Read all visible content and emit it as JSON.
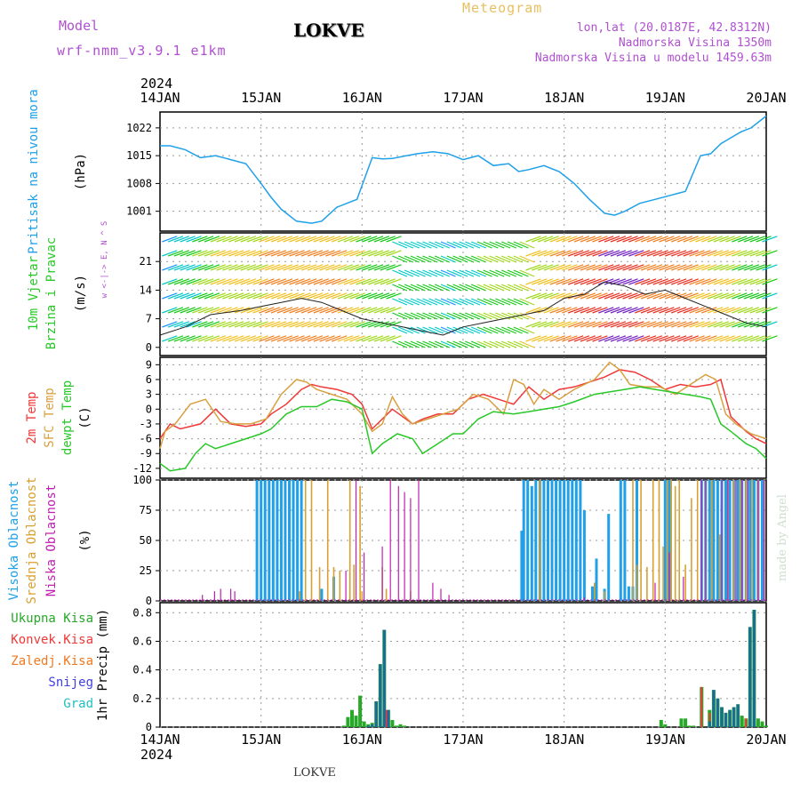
{
  "header": {
    "model_label": "Model",
    "model_name": "wrf-nmm_v3.9.1  e1km",
    "station": "LOKVE",
    "meteogram_title": "Meteogram",
    "coords": "lon,lat (20.0187E, 42.8312N)",
    "altitude": "Nadmorska Visina 1350m",
    "model_altitude": "Nadmorska Visina u modelu 1459.63m"
  },
  "footer": {
    "station": "LOKVE",
    "watermark": "made by Angel"
  },
  "colors": {
    "pressure": "#1fa0e8",
    "temp2m": "#f03838",
    "sfctemp": "#d8a040",
    "dewpoint": "#28c828",
    "high_cloud": "#1fa0e8",
    "mid_cloud": "#d8a030",
    "low_cloud": "#c020b0",
    "precip_total": "#28a828",
    "convective": "#f03838",
    "freezing": "#f07820",
    "snow": "#4040e0",
    "hail": "#20c0c0"
  },
  "chart_data": [
    {
      "type": "line",
      "panel": "pressure",
      "x_dates": [
        "14JAN",
        "15JAN",
        "16JAN",
        "17JAN",
        "18JAN",
        "19JAN",
        "20JAN"
      ],
      "x_year": "2024",
      "ylabel": "Pritisak na nivou mora",
      "unit": "(hPa)",
      "yticks": [
        1001,
        1008,
        1015,
        1022
      ],
      "ylim": [
        996,
        1026
      ],
      "series": [
        {
          "x": [
            0,
            0.1,
            0.25,
            0.4,
            0.55,
            0.7,
            0.85,
            1.0,
            1.1,
            1.2,
            1.35,
            1.5,
            1.6,
            1.75,
            1.85,
            1.95,
            2.1,
            2.2,
            2.3,
            2.4,
            2.55,
            2.7,
            2.85,
            3.0,
            3.15,
            3.3,
            3.45,
            3.55,
            3.65,
            3.8,
            3.95,
            4.1,
            4.25,
            4.4,
            4.5,
            4.6,
            4.75,
            4.9,
            5.05,
            5.2,
            5.35,
            5.45,
            5.55,
            5.65,
            5.75,
            5.85,
            6.0
          ],
          "y": [
            1017.5,
            1017.5,
            1016.5,
            1014.5,
            1015,
            1014,
            1013,
            1008,
            1004.5,
            1001.5,
            998.5,
            998,
            998.5,
            1002,
            1003,
            1004,
            1014.5,
            1014.2,
            1014.3,
            1014.8,
            1015.5,
            1016,
            1015.5,
            1014,
            1015,
            1012.5,
            1013,
            1011,
            1011.5,
            1012.5,
            1011,
            1008,
            1004,
            1000.5,
            1000,
            1001,
            1003,
            1004,
            1005,
            1006,
            1015,
            1015.5,
            1018,
            1019.5,
            1021,
            1022,
            1025
          ]
        }
      ]
    },
    {
      "type": "wind-barbs",
      "panel": "wind",
      "ylabel": "10m Vjetar Brzina i Pravac",
      "unit": "(m/s)",
      "yticks": [
        0,
        7,
        14,
        21
      ],
      "ylim": [
        -2,
        28
      ],
      "direction_legend": "w <-|-> E, N ^ S",
      "mean_speed": {
        "x": [
          0,
          0.25,
          0.5,
          0.8,
          1.0,
          1.2,
          1.4,
          1.6,
          1.8,
          2.0,
          2.2,
          2.4,
          2.6,
          2.8,
          3.0,
          3.2,
          3.4,
          3.6,
          3.8,
          4.0,
          4.2,
          4.4,
          4.6,
          4.8,
          5.0,
          5.2,
          5.4,
          5.6,
          5.8,
          6.0
        ],
        "y": [
          3,
          5,
          8,
          9,
          10,
          11,
          12,
          11,
          9,
          7,
          6,
          5,
          4,
          3,
          5,
          6,
          7,
          8,
          9,
          12,
          13,
          16,
          15,
          13,
          14,
          12,
          10,
          8,
          6,
          5
        ]
      }
    },
    {
      "type": "line",
      "panel": "temperature",
      "ylabel": [
        "2m Temp",
        "SFC Temp",
        "dewpt Temp"
      ],
      "unit": "(C)",
      "yticks": [
        -12,
        -9,
        -6,
        -3,
        0,
        3,
        6,
        9
      ],
      "ylim": [
        -14,
        10.5
      ],
      "series": [
        {
          "name": "2m Temp",
          "x": [
            0,
            0.1,
            0.2,
            0.4,
            0.55,
            0.7,
            0.85,
            1.0,
            1.1,
            1.25,
            1.4,
            1.5,
            1.6,
            1.75,
            1.9,
            2.0,
            2.1,
            2.2,
            2.3,
            2.5,
            2.6,
            2.75,
            2.9,
            3.05,
            3.2,
            3.35,
            3.5,
            3.65,
            3.8,
            3.95,
            4.1,
            4.25,
            4.4,
            4.55,
            4.7,
            4.85,
            5.0,
            5.15,
            5.3,
            5.45,
            5.55,
            5.65,
            5.8,
            5.9,
            6.0
          ],
          "y": [
            -6,
            -3,
            -4,
            -3,
            0,
            -3,
            -3.5,
            -3,
            -1,
            1,
            4,
            5,
            4.5,
            4,
            3,
            1,
            -4,
            -2,
            0,
            -3,
            -2,
            -1,
            -1,
            2,
            3,
            2,
            1,
            4.5,
            2,
            4,
            4.5,
            5.5,
            6.5,
            8,
            7.5,
            6,
            4,
            5,
            4.5,
            5,
            6,
            -1.5,
            -4.5,
            -6,
            -7
          ]
        },
        {
          "name": "SFC Temp",
          "x": [
            0,
            0.05,
            0.15,
            0.3,
            0.45,
            0.6,
            0.75,
            0.9,
            1.05,
            1.2,
            1.35,
            1.45,
            1.55,
            1.7,
            1.85,
            2.0,
            2.1,
            2.2,
            2.3,
            2.4,
            2.5,
            2.65,
            2.8,
            2.95,
            3.1,
            3.25,
            3.4,
            3.5,
            3.6,
            3.7,
            3.8,
            3.95,
            4.1,
            4.3,
            4.45,
            4.55,
            4.65,
            4.8,
            4.95,
            5.1,
            5.25,
            5.4,
            5.5,
            5.6,
            5.7,
            5.85,
            6.0
          ],
          "y": [
            -8,
            -4.5,
            -3,
            1,
            2,
            -2.5,
            -3,
            -3,
            -2,
            3,
            6,
            5.5,
            4,
            3,
            2,
            -1,
            -4.5,
            -3,
            2.5,
            -1,
            -3,
            -2,
            -1,
            0,
            3,
            2,
            -1,
            6,
            5,
            1,
            4,
            2,
            4,
            6,
            9.5,
            8,
            5,
            4.5,
            4.5,
            3,
            5,
            7,
            6,
            -1,
            -3,
            -5,
            -6
          ]
        },
        {
          "name": "dewpt Temp",
          "x": [
            0,
            0.1,
            0.25,
            0.35,
            0.45,
            0.55,
            0.7,
            0.85,
            1.0,
            1.1,
            1.25,
            1.4,
            1.55,
            1.7,
            1.85,
            2.0,
            2.1,
            2.2,
            2.35,
            2.5,
            2.6,
            2.75,
            2.9,
            3.0,
            3.15,
            3.3,
            3.5,
            3.65,
            3.8,
            3.95,
            4.1,
            4.3,
            4.45,
            4.6,
            4.75,
            4.9,
            5.05,
            5.2,
            5.35,
            5.45,
            5.55,
            5.65,
            5.8,
            5.9,
            6.0
          ],
          "y": [
            -11,
            -12.5,
            -12,
            -9,
            -7,
            -8,
            -7,
            -6,
            -5,
            -4,
            -1,
            0.5,
            0.5,
            2,
            1.5,
            0,
            -9,
            -7,
            -5,
            -6,
            -9,
            -7,
            -5,
            -5,
            -2,
            -0.5,
            -1,
            -0.5,
            0,
            0.5,
            1.5,
            3,
            3.5,
            4,
            4.5,
            4,
            3.5,
            3,
            2.5,
            2,
            -3,
            -4.5,
            -7,
            -8,
            -10
          ]
        }
      ]
    },
    {
      "type": "bar",
      "panel": "clouds",
      "ylabel": [
        "Visoka Oblacnost",
        "Srednja Oblacnost",
        "Niska Oblacnost"
      ],
      "unit": "(%)",
      "yticks": [
        0,
        25,
        50,
        75,
        100
      ],
      "ylim": [
        0,
        100
      ],
      "series": [
        {
          "name": "Visoka Oblacnost",
          "x": [
            0.96,
            1.0,
            1.04,
            1.08,
            1.12,
            1.16,
            1.2,
            1.24,
            1.28,
            1.32,
            1.36,
            1.4,
            1.6,
            1.72,
            3.58,
            3.6,
            3.64,
            3.68,
            3.72,
            3.76,
            3.8,
            3.84,
            3.88,
            3.92,
            3.96,
            4.0,
            4.04,
            4.08,
            4.12,
            4.16,
            4.2,
            4.28,
            4.32,
            4.4,
            4.44,
            4.56,
            4.6,
            4.64,
            4.68,
            4.72,
            5.0,
            5.04,
            5.36,
            5.4,
            5.44,
            5.48,
            5.52,
            5.56,
            5.6,
            5.64,
            5.68,
            5.72,
            5.76,
            5.8,
            5.84,
            5.88,
            5.92,
            5.96
          ],
          "values": [
            100,
            100,
            100,
            100,
            100,
            100,
            100,
            100,
            100,
            100,
            100,
            100,
            10,
            20,
            58,
            100,
            100,
            95,
            100,
            100,
            100,
            100,
            100,
            100,
            100,
            100,
            100,
            100,
            100,
            100,
            75,
            12,
            35,
            10,
            72,
            100,
            100,
            12,
            12,
            100,
            100,
            100,
            100,
            100,
            100,
            100,
            100,
            100,
            100,
            100,
            100,
            100,
            100,
            100,
            100,
            100,
            100,
            100
          ]
        },
        {
          "name": "Srednja Oblacnost",
          "x": [
            1.38,
            1.44,
            1.5,
            1.58,
            1.66,
            1.72,
            1.78,
            1.88,
            1.92,
            1.98,
            2.0,
            2.2,
            2.24,
            2.48,
            3.76,
            4.3,
            4.4,
            4.68,
            4.72,
            4.76,
            4.82,
            4.88,
            4.94,
            4.98,
            5.02,
            5.06,
            5.1,
            5.14,
            5.2,
            5.26,
            5.32,
            5.4,
            5.46,
            5.54,
            5.62,
            5.68,
            5.74,
            5.8,
            5.86,
            5.92,
            5.98
          ],
          "values": [
            8,
            100,
            100,
            28,
            100,
            28,
            25,
            100,
            30,
            95,
            8,
            28,
            10,
            8,
            100,
            15,
            8,
            100,
            30,
            100,
            28,
            100,
            100,
            45,
            100,
            100,
            95,
            100,
            30,
            85,
            100,
            100,
            100,
            55,
            100,
            100,
            100,
            100,
            100,
            100,
            100
          ]
        },
        {
          "name": "Niska Oblacnost",
          "x": [
            0.42,
            0.54,
            0.6,
            0.7,
            0.74,
            1.84,
            1.94,
            2.02,
            2.2,
            2.28,
            2.36,
            2.42,
            2.48,
            2.56,
            2.7,
            2.78,
            2.86,
            4.2,
            4.9,
            5.04,
            5.18,
            5.36,
            5.4,
            5.56,
            5.62,
            5.7,
            5.76,
            5.82,
            5.92,
            5.98
          ],
          "values": [
            5,
            8,
            10,
            10,
            8,
            25,
            100,
            40,
            45,
            100,
            95,
            90,
            85,
            100,
            15,
            10,
            5,
            3,
            15,
            40,
            20,
            100,
            100,
            100,
            100,
            100,
            100,
            100,
            100,
            100
          ]
        }
      ]
    },
    {
      "type": "bar",
      "panel": "precipitation",
      "ylabel": "1hr Precip (mm)",
      "legend": [
        "Ukupna Kisa",
        "Konvek.Kisa",
        "Zaledj.Kisa",
        "Snijeg",
        "Grad"
      ],
      "yticks": [
        0,
        0.2,
        0.4,
        0.6,
        0.8
      ],
      "ylim": [
        0,
        0.87
      ],
      "series": [
        {
          "name": "Ukupna Kisa",
          "x": [
            1.82,
            1.86,
            1.9,
            1.94,
            1.98,
            2.02,
            2.06,
            2.1,
            2.14,
            2.18,
            2.22,
            2.26,
            2.3,
            2.34,
            2.38,
            2.42,
            4.96,
            5.0,
            5.16,
            5.2,
            5.24,
            5.28,
            5.36,
            5.44,
            5.48,
            5.52,
            5.56,
            5.6,
            5.64,
            5.68,
            5.72,
            5.76,
            5.8,
            5.84,
            5.88,
            5.92,
            5.96,
            6.0
          ],
          "values": [
            0.01,
            0.07,
            0.12,
            0.08,
            0.22,
            0.04,
            0.02,
            0.03,
            0.18,
            0.44,
            0.68,
            0.12,
            0.05,
            0.01,
            0.02,
            0.01,
            0.05,
            0.02,
            0.06,
            0.06,
            0.01,
            0.01,
            0.28,
            0.12,
            0.26,
            0.2,
            0.14,
            0.1,
            0.12,
            0.14,
            0.16,
            0.08,
            0.06,
            0.7,
            0.82,
            0.06,
            0.04,
            0.01
          ]
        },
        {
          "name": "Konvek.Kisa",
          "x": [
            2.24,
            5.36,
            5.44,
            5.8,
            5.84,
            5.88
          ],
          "values": [
            0.12,
            0.28,
            0.1,
            0.06,
            0.3,
            0.42
          ]
        },
        {
          "name": "Snijeg",
          "x": [
            2.06,
            2.1,
            2.14,
            2.18,
            2.22,
            2.26,
            5.44,
            5.48,
            5.52,
            5.56,
            5.6,
            5.64,
            5.68,
            5.72,
            5.84,
            5.88
          ],
          "values": [
            0.01,
            0.02,
            0.18,
            0.44,
            0.68,
            0.12,
            0.04,
            0.26,
            0.2,
            0.14,
            0.1,
            0.12,
            0.14,
            0.16,
            0.7,
            0.82
          ]
        }
      ]
    }
  ]
}
